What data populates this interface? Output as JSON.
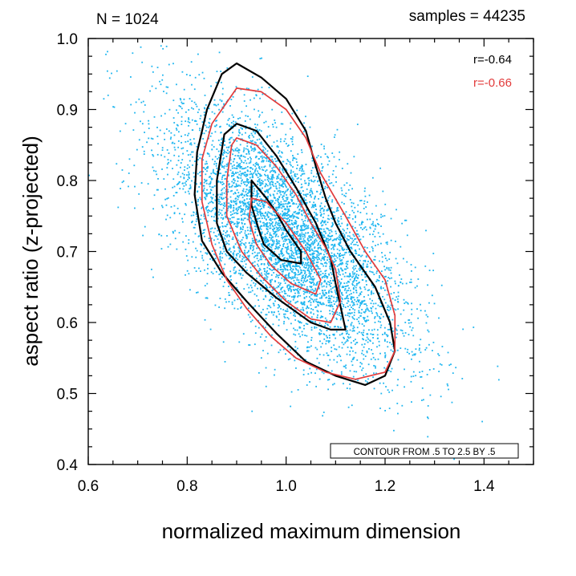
{
  "chart_data": {
    "type": "scatter",
    "header_left": "N = 1024",
    "header_right": "samples = 44235",
    "xlabel": "normalized maximum dimension",
    "ylabel": "aspect ratio (z-projected)",
    "xlim": [
      0.6,
      1.5
    ],
    "ylim": [
      0.4,
      1.0
    ],
    "xticks": [
      0.6,
      0.8,
      1.0,
      1.2,
      1.4
    ],
    "xtick_labels": [
      "0.6",
      "0.8",
      "1.0",
      "1.2",
      "1.4"
    ],
    "yticks": [
      0.4,
      0.5,
      0.6,
      0.7,
      0.8,
      0.9,
      1.0
    ],
    "ytick_labels": [
      "0.4",
      "0.5",
      "0.6",
      "0.7",
      "0.8",
      "0.9",
      "1.0"
    ],
    "x_minor_step": 0.05,
    "y_minor_step": 0.025,
    "grid": false,
    "contour_note": "CONTOUR FROM .5 TO 2.5 BY .5",
    "scatter_color": "#1eb6f0",
    "scatter": {
      "count": 44235,
      "mean_x": 1.0,
      "mean_y": 0.72,
      "sd_x": 0.12,
      "sd_y": 0.09,
      "correlation": -0.64
    },
    "series": [
      {
        "correlation_label": "r=-0.64",
        "color": "#000000",
        "contours": [
          [
            [
              0.87,
              0.95
            ],
            [
              0.9,
              0.965
            ],
            [
              0.95,
              0.945
            ],
            [
              1.0,
              0.915
            ],
            [
              1.04,
              0.87
            ],
            [
              1.06,
              0.82
            ],
            [
              1.08,
              0.775
            ],
            [
              1.1,
              0.74
            ],
            [
              1.13,
              0.7
            ],
            [
              1.18,
              0.65
            ],
            [
              1.21,
              0.6
            ],
            [
              1.22,
              0.56
            ],
            [
              1.2,
              0.525
            ],
            [
              1.16,
              0.512
            ],
            [
              1.1,
              0.525
            ],
            [
              1.04,
              0.545
            ],
            [
              0.98,
              0.585
            ],
            [
              0.92,
              0.63
            ],
            [
              0.87,
              0.67
            ],
            [
              0.83,
              0.715
            ],
            [
              0.815,
              0.78
            ],
            [
              0.82,
              0.84
            ],
            [
              0.84,
              0.9
            ],
            [
              0.87,
              0.95
            ]
          ],
          [
            [
              0.875,
              0.865
            ],
            [
              0.9,
              0.88
            ],
            [
              0.94,
              0.87
            ],
            [
              0.98,
              0.835
            ],
            [
              1.02,
              0.79
            ],
            [
              1.06,
              0.74
            ],
            [
              1.09,
              0.69
            ],
            [
              1.1,
              0.655
            ],
            [
              1.12,
              0.59
            ],
            [
              1.09,
              0.59
            ],
            [
              1.05,
              0.6
            ],
            [
              0.98,
              0.635
            ],
            [
              0.92,
              0.67
            ],
            [
              0.88,
              0.7
            ],
            [
              0.86,
              0.74
            ],
            [
              0.86,
              0.8
            ],
            [
              0.875,
              0.865
            ]
          ],
          [
            [
              0.93,
              0.8
            ],
            [
              0.96,
              0.775
            ],
            [
              0.98,
              0.755
            ],
            [
              1.0,
              0.73
            ],
            [
              1.03,
              0.7
            ],
            [
              1.03,
              0.683
            ],
            [
              0.99,
              0.688
            ],
            [
              0.955,
              0.71
            ],
            [
              0.945,
              0.73
            ],
            [
              0.93,
              0.765
            ],
            [
              0.93,
              0.8
            ]
          ]
        ]
      },
      {
        "correlation_label": "r=-0.66",
        "color": "#e23b3b",
        "contours": [
          [
            [
              0.88,
              0.91
            ],
            [
              0.9,
              0.93
            ],
            [
              0.95,
              0.925
            ],
            [
              1.0,
              0.9
            ],
            [
              1.04,
              0.86
            ],
            [
              1.07,
              0.81
            ],
            [
              1.12,
              0.75
            ],
            [
              1.16,
              0.7
            ],
            [
              1.2,
              0.66
            ],
            [
              1.22,
              0.61
            ],
            [
              1.22,
              0.56
            ],
            [
              1.2,
              0.53
            ],
            [
              1.14,
              0.52
            ],
            [
              1.08,
              0.53
            ],
            [
              1.02,
              0.55
            ],
            [
              0.97,
              0.58
            ],
            [
              0.92,
              0.62
            ],
            [
              0.88,
              0.66
            ],
            [
              0.85,
              0.71
            ],
            [
              0.83,
              0.77
            ],
            [
              0.83,
              0.83
            ],
            [
              0.85,
              0.88
            ],
            [
              0.88,
              0.91
            ]
          ],
          [
            [
              0.89,
              0.85
            ],
            [
              0.9,
              0.86
            ],
            [
              0.94,
              0.85
            ],
            [
              0.98,
              0.82
            ],
            [
              1.02,
              0.78
            ],
            [
              1.05,
              0.74
            ],
            [
              1.08,
              0.705
            ],
            [
              1.1,
              0.675
            ],
            [
              1.11,
              0.63
            ],
            [
              1.09,
              0.6
            ],
            [
              1.05,
              0.605
            ],
            [
              1.0,
              0.63
            ],
            [
              0.95,
              0.665
            ],
            [
              0.91,
              0.7
            ],
            [
              0.88,
              0.75
            ],
            [
              0.88,
              0.8
            ],
            [
              0.89,
              0.85
            ]
          ],
          [
            [
              0.93,
              0.775
            ],
            [
              0.96,
              0.77
            ],
            [
              1.0,
              0.74
            ],
            [
              1.04,
              0.7
            ],
            [
              1.07,
              0.66
            ],
            [
              1.06,
              0.64
            ],
            [
              1.01,
              0.655
            ],
            [
              0.97,
              0.68
            ],
            [
              0.94,
              0.71
            ],
            [
              0.925,
              0.745
            ],
            [
              0.93,
              0.775
            ]
          ]
        ]
      }
    ]
  }
}
